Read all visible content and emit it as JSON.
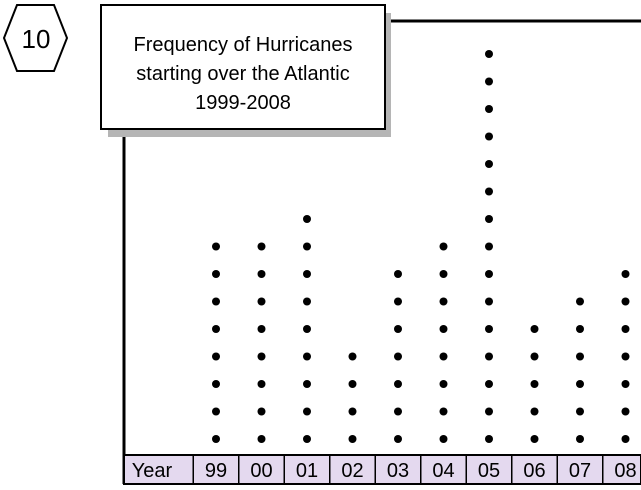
{
  "problem": {
    "number": "10",
    "title_lines": [
      "Frequency of Hurricanes",
      "starting over the Atlantic",
      "1999-2008"
    ]
  },
  "colors": {
    "ink": "#000000",
    "axis_fill": "#e4d9ef",
    "paper": "#ffffff"
  },
  "chart_data": {
    "type": "scatter",
    "subtype": "dot-plot",
    "title": "Frequency of Hurricanes starting over the Atlantic 1999-2008",
    "xlabel": "Year",
    "categories": [
      "99",
      "00",
      "01",
      "02",
      "03",
      "04",
      "05",
      "06",
      "07",
      "08"
    ],
    "values": [
      8,
      8,
      9,
      4,
      7,
      8,
      15,
      5,
      6,
      7
    ],
    "ylim": [
      0,
      15
    ],
    "grid": false,
    "legend": "none"
  }
}
